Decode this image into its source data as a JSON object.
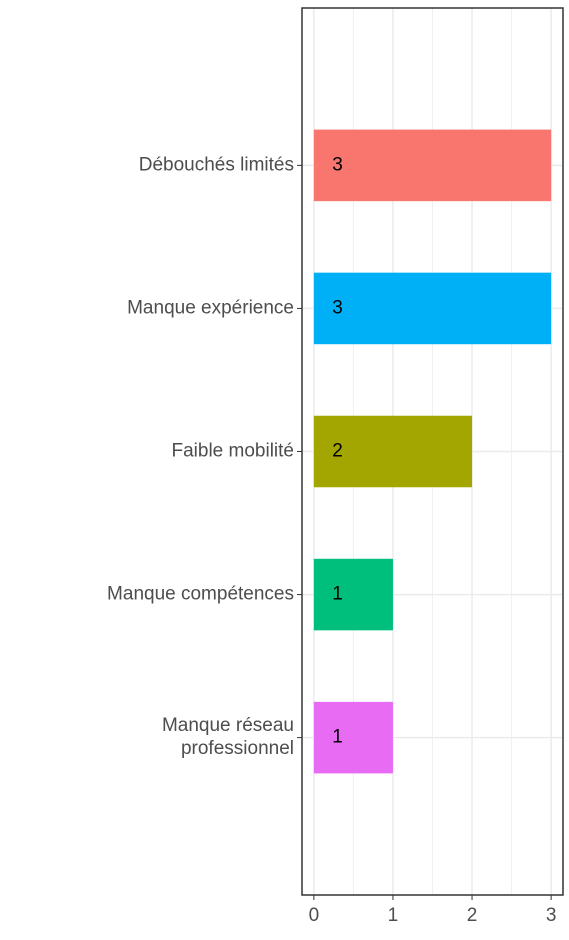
{
  "chart_data": {
    "type": "barh",
    "categories": [
      "Débouchés limités",
      "Manque expérience",
      "Faible mobilité",
      "Manque compétences",
      "Manque réseau\nprofessionnel"
    ],
    "values": [
      3,
      3,
      2,
      1,
      1
    ],
    "colors": [
      "#f8766d",
      "#00b0f6",
      "#a3a500",
      "#00bf7d",
      "#e76bf3"
    ],
    "xlim": [
      -0.15,
      3.15
    ],
    "xticks": [
      0,
      1,
      2,
      3
    ],
    "grid": true
  }
}
